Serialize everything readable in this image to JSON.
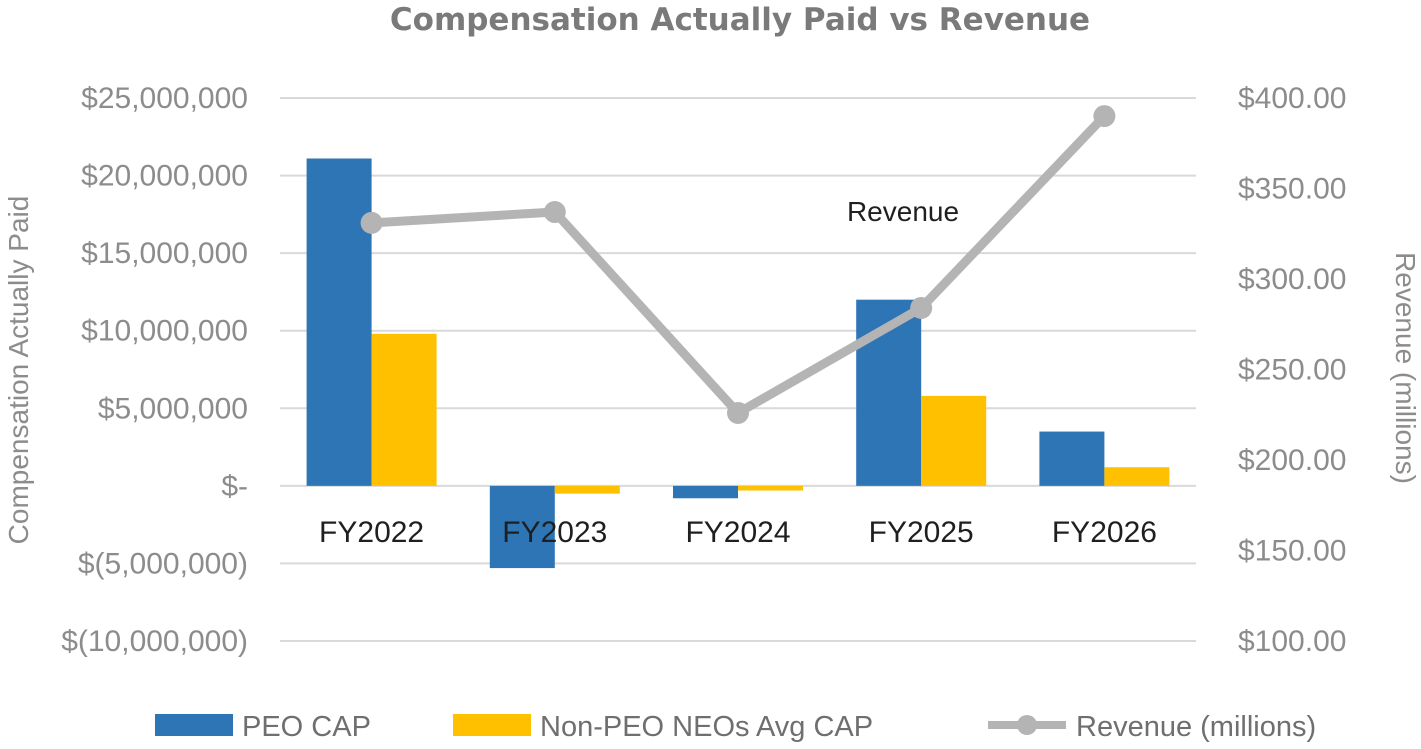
{
  "chart_data": {
    "type": "bar",
    "title": "Compensation Actually Paid vs Revenue",
    "categories": [
      "FY2022",
      "FY2023",
      "FY2024",
      "FY2025",
      "FY2026"
    ],
    "ylabel": "Compensation Actually Paid",
    "ylim": [
      -10000000,
      25000000
    ],
    "yticks": [
      25000000,
      20000000,
      15000000,
      10000000,
      5000000,
      0,
      -5000000,
      -10000000
    ],
    "ytick_labels": [
      "$25,000,000",
      "$20,000,000",
      "$15,000,000",
      "$10,000,000",
      "$5,000,000",
      "$-",
      "$(5,000,000)",
      "$(10,000,000)"
    ],
    "y2label": "Revenue (millions)",
    "y2lim": [
      100,
      400
    ],
    "y2ticks": [
      400,
      350,
      300,
      250,
      200,
      150,
      100
    ],
    "y2tick_labels": [
      "$400.00",
      "$350.00",
      "$300.00",
      "$250.00",
      "$200.00",
      "$150.00",
      "$100.00"
    ],
    "grid": true,
    "legend": "bottom",
    "series": [
      {
        "name": "PEO CAP",
        "type": "bar",
        "axis": "left",
        "color": "#2e75b6",
        "values": [
          21100000,
          -5300000,
          -800000,
          12000000,
          3500000
        ]
      },
      {
        "name": "Non-PEO NEOs Avg CAP",
        "type": "bar",
        "axis": "left",
        "color": "#ffc000",
        "values": [
          9800000,
          -500000,
          -300000,
          5800000,
          1200000
        ]
      },
      {
        "name": "Revenue (millions)",
        "type": "line",
        "axis": "right",
        "color": "#b4b4b4",
        "values": [
          331,
          337,
          226,
          284,
          390
        ]
      }
    ],
    "annotations": [
      {
        "text": "Revenue",
        "series": "Revenue (millions)"
      }
    ]
  }
}
